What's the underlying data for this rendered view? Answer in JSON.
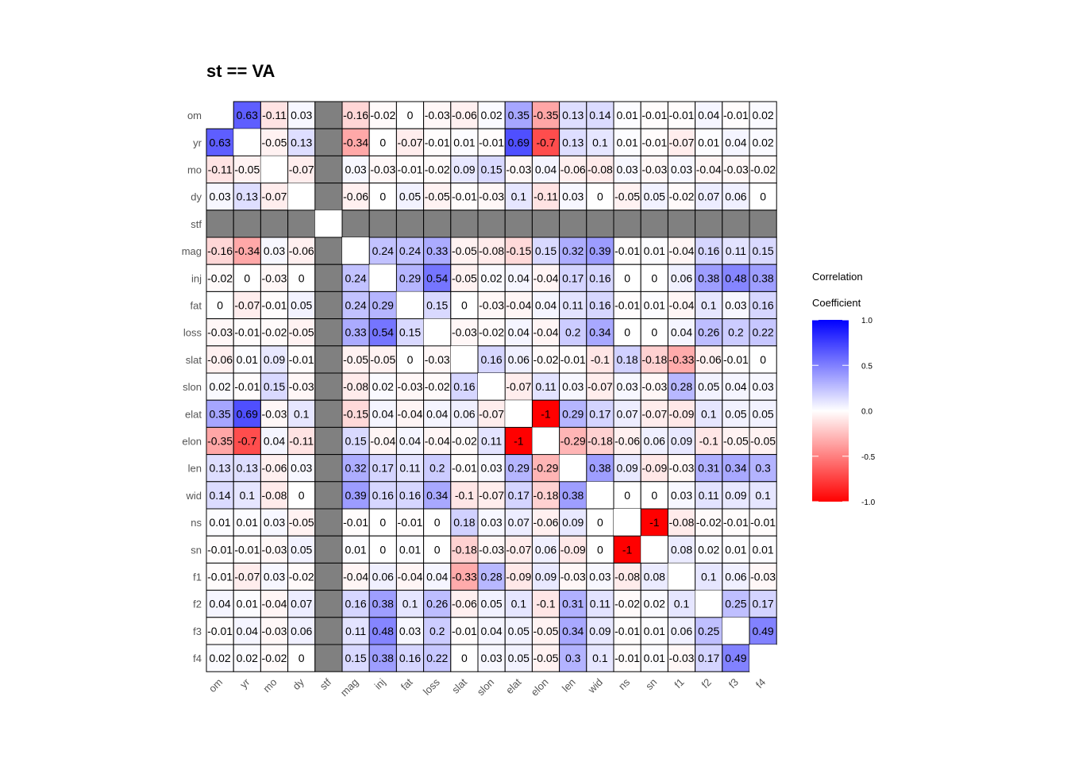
{
  "chart_data": {
    "type": "heatmap",
    "title": "st == VA",
    "variables": [
      "om",
      "yr",
      "mo",
      "dy",
      "stf",
      "mag",
      "inj",
      "fat",
      "loss",
      "slat",
      "slon",
      "elat",
      "elon",
      "len",
      "wid",
      "ns",
      "sn",
      "f1",
      "f2",
      "f3",
      "f4"
    ],
    "na_variable": "stf",
    "matrix": [
      [
        null,
        0.63,
        -0.11,
        0.03,
        null,
        -0.16,
        -0.02,
        0,
        -0.03,
        -0.06,
        0.02,
        0.35,
        -0.35,
        0.13,
        0.14,
        0.01,
        -0.01,
        -0.01,
        0.04,
        -0.01,
        0.02
      ],
      [
        0.63,
        null,
        -0.05,
        0.13,
        null,
        -0.34,
        0,
        -0.07,
        -0.01,
        0.01,
        -0.01,
        0.69,
        -0.7,
        0.13,
        0.1,
        0.01,
        -0.01,
        -0.07,
        0.01,
        0.04,
        0.02
      ],
      [
        -0.11,
        -0.05,
        null,
        -0.07,
        null,
        0.03,
        -0.03,
        -0.01,
        -0.02,
        0.09,
        0.15,
        -0.03,
        0.04,
        -0.06,
        -0.08,
        0.03,
        -0.03,
        0.03,
        -0.04,
        -0.03,
        -0.02
      ],
      [
        0.03,
        0.13,
        -0.07,
        null,
        null,
        -0.06,
        0,
        0.05,
        -0.05,
        -0.01,
        -0.03,
        0.1,
        -0.11,
        0.03,
        0,
        -0.05,
        0.05,
        -0.02,
        0.07,
        0.06,
        0
      ],
      [
        null,
        null,
        null,
        null,
        null,
        null,
        null,
        null,
        null,
        null,
        null,
        null,
        null,
        null,
        null,
        null,
        null,
        null,
        null,
        null,
        null
      ],
      [
        -0.16,
        -0.34,
        0.03,
        -0.06,
        null,
        null,
        0.24,
        0.24,
        0.33,
        -0.05,
        -0.08,
        -0.15,
        0.15,
        0.32,
        0.39,
        -0.01,
        0.01,
        -0.04,
        0.16,
        0.11,
        0.15
      ],
      [
        -0.02,
        0,
        -0.03,
        0,
        null,
        0.24,
        null,
        0.29,
        0.54,
        -0.05,
        0.02,
        0.04,
        -0.04,
        0.17,
        0.16,
        0,
        0,
        0.06,
        0.38,
        0.48,
        0.38
      ],
      [
        0,
        -0.07,
        -0.01,
        0.05,
        null,
        0.24,
        0.29,
        null,
        0.15,
        0,
        -0.03,
        -0.04,
        0.04,
        0.11,
        0.16,
        -0.01,
        0.01,
        -0.04,
        0.1,
        0.03,
        0.16
      ],
      [
        -0.03,
        -0.01,
        -0.02,
        -0.05,
        null,
        0.33,
        0.54,
        0.15,
        null,
        -0.03,
        -0.02,
        0.04,
        -0.04,
        0.2,
        0.34,
        0,
        0,
        0.04,
        0.26,
        0.2,
        0.22
      ],
      [
        -0.06,
        0.01,
        0.09,
        -0.01,
        null,
        -0.05,
        -0.05,
        0,
        -0.03,
        null,
        0.16,
        0.06,
        -0.02,
        -0.01,
        -0.1,
        0.18,
        -0.18,
        -0.33,
        -0.06,
        -0.01,
        0
      ],
      [
        0.02,
        -0.01,
        0.15,
        -0.03,
        null,
        -0.08,
        0.02,
        -0.03,
        -0.02,
        0.16,
        null,
        -0.07,
        0.11,
        0.03,
        -0.07,
        0.03,
        -0.03,
        0.28,
        0.05,
        0.04,
        0.03
      ],
      [
        0.35,
        0.69,
        -0.03,
        0.1,
        null,
        -0.15,
        0.04,
        -0.04,
        0.04,
        0.06,
        -0.07,
        null,
        -1,
        0.29,
        0.17,
        0.07,
        -0.07,
        -0.09,
        0.1,
        0.05,
        0.05
      ],
      [
        -0.35,
        -0.7,
        0.04,
        -0.11,
        null,
        0.15,
        -0.04,
        0.04,
        -0.04,
        -0.02,
        0.11,
        -1,
        null,
        -0.29,
        -0.18,
        -0.06,
        0.06,
        0.09,
        -0.1,
        -0.05,
        -0.05
      ],
      [
        0.13,
        0.13,
        -0.06,
        0.03,
        null,
        0.32,
        0.17,
        0.11,
        0.2,
        -0.01,
        0.03,
        0.29,
        -0.29,
        null,
        0.38,
        0.09,
        -0.09,
        -0.03,
        0.31,
        0.34,
        0.3
      ],
      [
        0.14,
        0.1,
        -0.08,
        0,
        null,
        0.39,
        0.16,
        0.16,
        0.34,
        -0.1,
        -0.07,
        0.17,
        -0.18,
        0.38,
        null,
        0,
        0,
        0.03,
        0.11,
        0.09,
        0.1
      ],
      [
        0.01,
        0.01,
        0.03,
        -0.05,
        null,
        -0.01,
        0,
        -0.01,
        0,
        0.18,
        0.03,
        0.07,
        -0.06,
        0.09,
        0,
        null,
        -1,
        -0.08,
        -0.02,
        -0.01,
        -0.01
      ],
      [
        -0.01,
        -0.01,
        -0.03,
        0.05,
        null,
        0.01,
        0,
        0.01,
        0,
        -0.18,
        -0.03,
        -0.07,
        0.06,
        -0.09,
        0,
        -1,
        null,
        0.08,
        0.02,
        0.01,
        0.01
      ],
      [
        -0.01,
        -0.07,
        0.03,
        -0.02,
        null,
        -0.04,
        0.06,
        -0.04,
        0.04,
        -0.33,
        0.28,
        -0.09,
        0.09,
        -0.03,
        0.03,
        -0.08,
        0.08,
        null,
        0.1,
        0.06,
        -0.03
      ],
      [
        0.04,
        0.01,
        -0.04,
        0.07,
        null,
        0.16,
        0.38,
        0.1,
        0.26,
        -0.06,
        0.05,
        0.1,
        -0.1,
        0.31,
        0.11,
        -0.02,
        0.02,
        0.1,
        null,
        0.25,
        0.17
      ],
      [
        -0.01,
        0.04,
        -0.03,
        0.06,
        null,
        0.11,
        0.48,
        0.03,
        0.2,
        -0.01,
        0.04,
        0.05,
        -0.05,
        0.34,
        0.09,
        -0.01,
        0.01,
        0.06,
        0.25,
        null,
        0.49
      ],
      [
        0.02,
        0.02,
        -0.02,
        0,
        null,
        0.15,
        0.38,
        0.16,
        0.22,
        0,
        0.03,
        0.05,
        -0.05,
        0.3,
        0.1,
        -0.01,
        0.01,
        -0.03,
        0.17,
        0.49,
        null
      ]
    ],
    "colors": {
      "low": "#ff0000",
      "mid": "#ffffff",
      "high": "#0000ff",
      "na": "#808080"
    },
    "legend": {
      "title_line1": "Correlation",
      "title_line2": "Coefficient",
      "ticks": [
        "1.0",
        "0.5",
        "0.0",
        "-0.5",
        "-1.0"
      ],
      "tick_values": [
        1,
        0.5,
        0,
        -0.5,
        -1
      ],
      "placement": "right"
    }
  }
}
